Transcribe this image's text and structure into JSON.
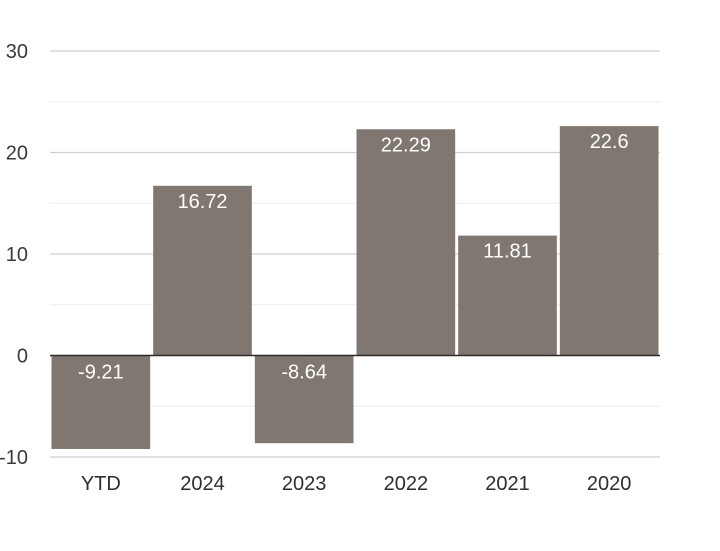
{
  "chart_data": {
    "type": "bar",
    "categories": [
      "YTD",
      "2024",
      "2023",
      "2022",
      "2021",
      "2020"
    ],
    "values": [
      -9.21,
      16.72,
      -8.64,
      22.29,
      11.81,
      22.6
    ],
    "data_labels": [
      "-9.21",
      "16.72",
      "-8.64",
      "22.29",
      "11.81",
      "22.6"
    ],
    "ylim": [
      -10,
      30
    ],
    "yticks": [
      -10,
      0,
      10,
      20,
      30
    ],
    "ytick_labels": [
      "-10",
      "0",
      "10",
      "20",
      "30"
    ],
    "minor_gridlines": [
      -5,
      5,
      15,
      25
    ],
    "grid": true,
    "title": "",
    "xlabel": "",
    "ylabel": ""
  },
  "colors": {
    "bar": "#807870",
    "grid_major": "#cfcfcf",
    "grid_minor": "#ececec",
    "zero_line": "#2b2b2b",
    "bar_label": "#ffffff"
  }
}
